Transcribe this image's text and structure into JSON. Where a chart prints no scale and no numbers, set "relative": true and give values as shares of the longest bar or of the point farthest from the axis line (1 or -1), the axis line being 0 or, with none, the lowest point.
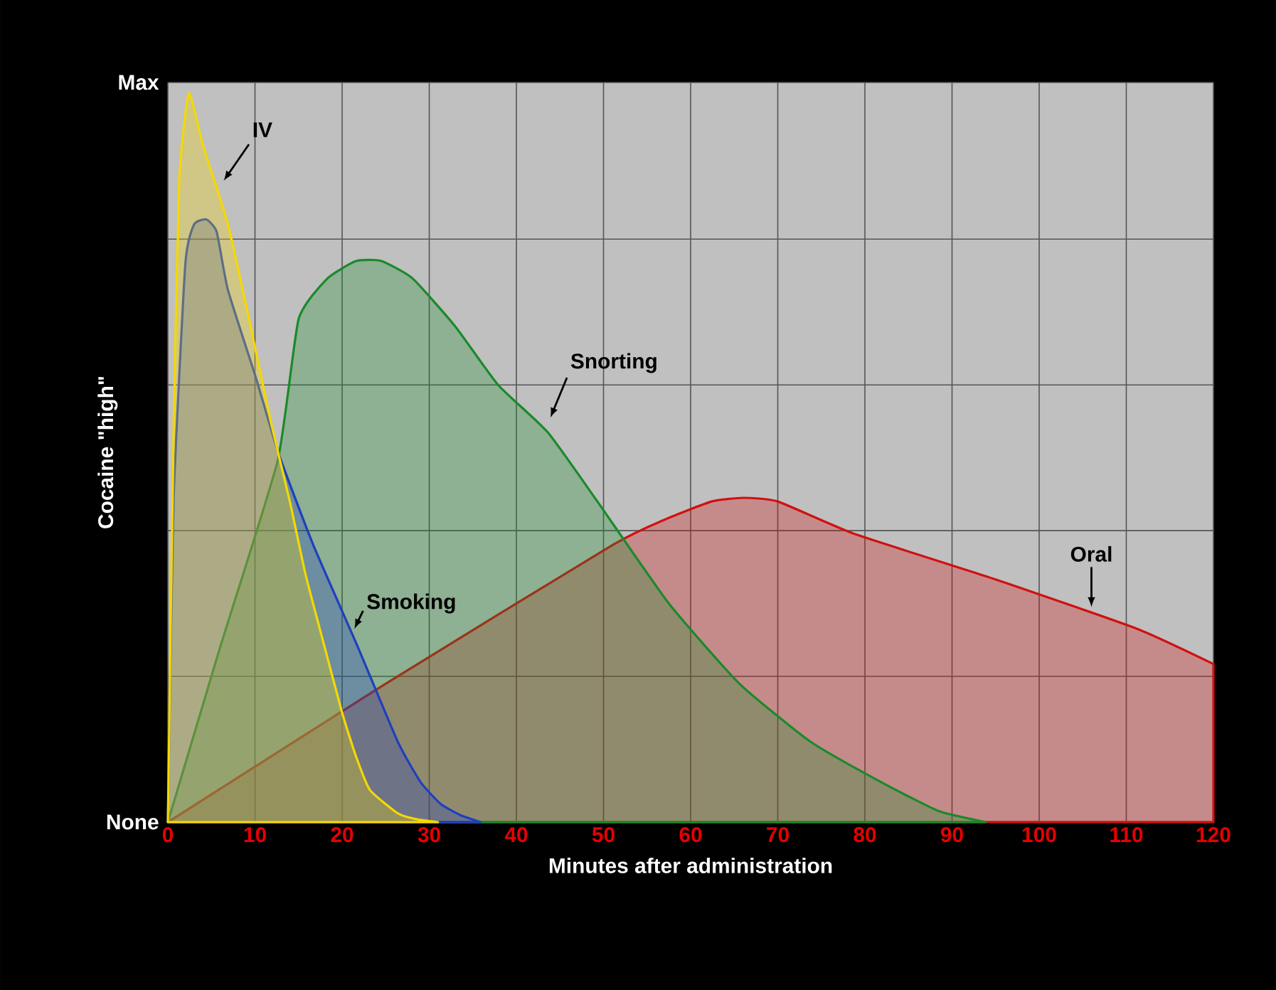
{
  "chart_data": {
    "type": "area",
    "xlabel": "Minutes after administration",
    "ylabel": "Cocaine \"high\"",
    "xlim": [
      0,
      120
    ],
    "xticks": [
      0,
      10,
      20,
      30,
      40,
      50,
      60,
      70,
      80,
      90,
      100,
      110,
      120
    ],
    "relative": true,
    "annotations": [
      "Max",
      "None"
    ],
    "grid": true,
    "series": [
      {
        "name": "IV",
        "color": "#f5d800",
        "x": [
          0,
          0.65,
          1.3,
          2.4,
          4,
          6.9,
          9.5,
          11.8,
          14,
          15.8,
          18,
          20,
          21.6,
          23.2,
          26.4,
          28.5,
          31
        ],
        "values": [
          0,
          0.53,
          0.88,
          1,
          0.93,
          0.82,
          0.68,
          0.55,
          0.44,
          0.34,
          0.24,
          0.15,
          0.09,
          0.044,
          0.012,
          0.004,
          0
        ]
      },
      {
        "name": "Smoking",
        "color": "#1f3fbf",
        "x": [
          0,
          0.65,
          2,
          3,
          4.4,
          5.6,
          6.9,
          10.1,
          12.7,
          16.7,
          21.6,
          26.4,
          29,
          31.3,
          33.5,
          35.9
        ],
        "values": [
          0,
          0.44,
          0.765,
          0.82,
          0.827,
          0.81,
          0.73,
          0.61,
          0.506,
          0.38,
          0.246,
          0.11,
          0.055,
          0.025,
          0.01,
          0
        ]
      },
      {
        "name": "Snorting",
        "color": "#1a8a2a",
        "x": [
          0,
          6,
          12.6,
          15,
          18.3,
          21.6,
          24.5,
          28.1,
          33,
          37.9,
          43.6,
          49.3,
          57.5,
          65.6,
          73.8,
          82,
          88.5,
          93.9
        ],
        "values": [
          0,
          0.24,
          0.496,
          0.69,
          0.746,
          0.77,
          0.77,
          0.746,
          0.68,
          0.6,
          0.535,
          0.44,
          0.3,
          0.19,
          0.11,
          0.054,
          0.015,
          0
        ]
      },
      {
        "name": "Oral",
        "color": "#d01010",
        "x": [
          0,
          25,
          51,
          57,
          62.4,
          66,
          70,
          78.7,
          95,
          111.3,
          120
        ],
        "values": [
          0,
          0.19,
          0.38,
          0.415,
          0.44,
          0.445,
          0.44,
          0.396,
          0.333,
          0.265,
          0.217
        ]
      }
    ]
  }
}
